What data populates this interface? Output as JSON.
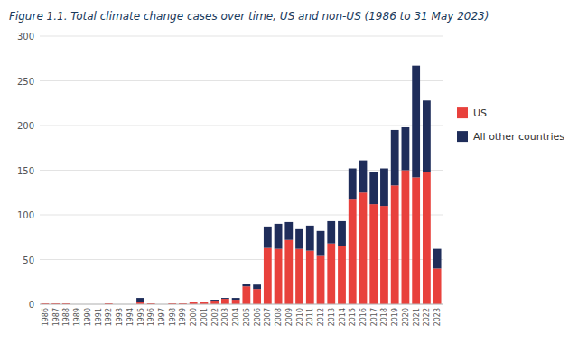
{
  "chart_data": {
    "type": "bar",
    "stacked": true,
    "title": "Figure 1.1. Total climate change cases over time, US and non-US (1986 to 31 May 2023)",
    "categories": [
      "1986",
      "1987",
      "1988",
      "1989",
      "1990",
      "1991",
      "1992",
      "1993",
      "1994",
      "1995",
      "1996",
      "1997",
      "1998",
      "1999",
      "2000",
      "2001",
      "2002",
      "2003",
      "2004",
      "2005",
      "2006",
      "2007",
      "2008",
      "2009",
      "2010",
      "2011",
      "2012",
      "2013",
      "2014",
      "2015",
      "2016",
      "2017",
      "2018",
      "2019",
      "2020",
      "2021",
      "2022",
      "2023"
    ],
    "series": [
      {
        "name": "US",
        "color": "#e8413c",
        "values": [
          1,
          1,
          1,
          0,
          0,
          0,
          1,
          0,
          0,
          2,
          1,
          0,
          1,
          1,
          2,
          2,
          4,
          6,
          5,
          20,
          17,
          63,
          62,
          72,
          62,
          60,
          55,
          68,
          65,
          118,
          125,
          112,
          110,
          133,
          150,
          142,
          148,
          40
        ]
      },
      {
        "name": "All other countries",
        "color": "#1f2d5a",
        "values": [
          0,
          0,
          0,
          0,
          0,
          0,
          0,
          0,
          0,
          5,
          0,
          0,
          0,
          0,
          0,
          0,
          1,
          1,
          2,
          3,
          5,
          24,
          28,
          20,
          22,
          28,
          27,
          25,
          28,
          34,
          36,
          36,
          42,
          62,
          48,
          125,
          80,
          22
        ]
      }
    ],
    "ylim": [
      0,
      300
    ],
    "yticks": [
      0,
      50,
      100,
      150,
      200,
      250,
      300
    ],
    "grid": true,
    "legend": "right"
  }
}
